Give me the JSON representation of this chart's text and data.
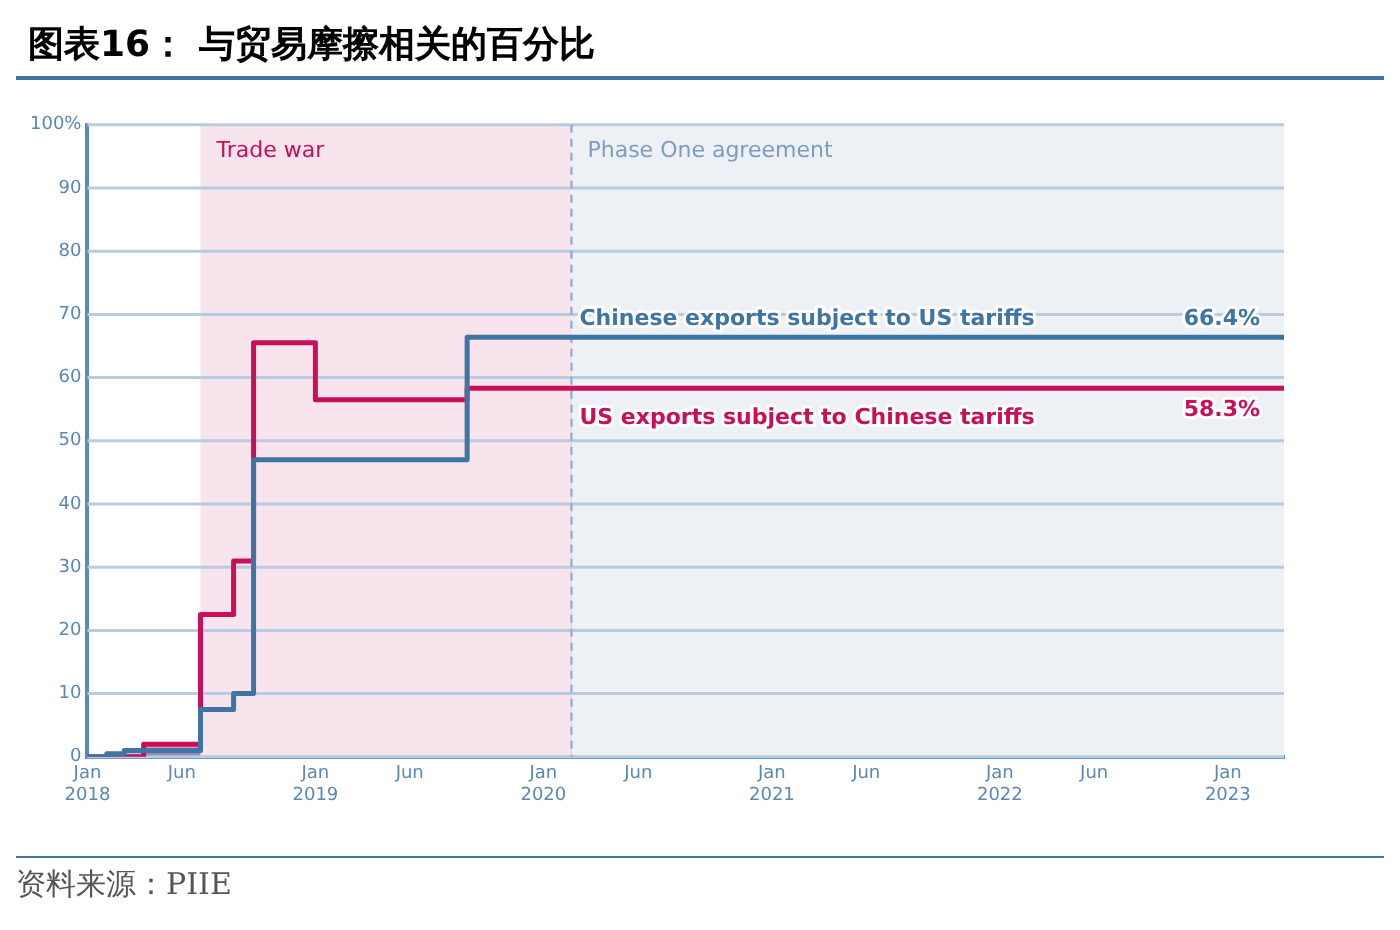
{
  "chart_data": {
    "type": "step",
    "title": "图表16：  与贸易摩擦相关的百分比",
    "annotations": [
      "资料来源：PIIE"
    ],
    "series": [
      {
        "name": "US exports subject to Chinese tariffs",
        "color": "#c8105a",
        "x": [
          "2018-01",
          "2018-04",
          "2018-07",
          "2018-08-23",
          "2018-09-24",
          "2019-01",
          "2019-09",
          "2023-04"
        ],
        "values": [
          0,
          2,
          22.5,
          31,
          65.5,
          56.5,
          58.3,
          58.3
        ],
        "value_labels": [
          null,
          null,
          null,
          null,
          null,
          null,
          null,
          "58.3%"
        ]
      },
      {
        "name": "Chinese exports subject to US tariffs",
        "color": "#3f74a3",
        "x": [
          "2018-01",
          "2018-02",
          "2018-03",
          "2018-07",
          "2018-08-23",
          "2018-09-24",
          "2019-09",
          "2023-04"
        ],
        "values": [
          0,
          0.5,
          1,
          7.5,
          10,
          47,
          66.4,
          66.4
        ],
        "value_labels": [
          null,
          null,
          null,
          null,
          null,
          null,
          null,
          "66.4%"
        ]
      }
    ],
    "xlim": [
      "2018-01",
      "2023-04"
    ],
    "xticks": [
      {
        "value": "2018-01",
        "label": "Jan\n2018"
      },
      {
        "value": "2018-06",
        "label": "Jun"
      },
      {
        "value": "2019-01",
        "label": "Jan\n2019"
      },
      {
        "value": "2019-06",
        "label": "Jun"
      },
      {
        "value": "2020-01",
        "label": "Jan\n2020"
      },
      {
        "value": "2020-06",
        "label": "Jun"
      },
      {
        "value": "2021-01",
        "label": "Jan\n2021"
      },
      {
        "value": "2021-06",
        "label": "Jun"
      },
      {
        "value": "2022-01",
        "label": "Jan\n2022"
      },
      {
        "value": "2022-06",
        "label": "Jun"
      },
      {
        "value": "2023-01",
        "label": "Jan\n2023"
      }
    ],
    "ylim": [
      0,
      100
    ],
    "yticks": [
      0,
      10,
      20,
      30,
      40,
      50,
      60,
      70,
      80,
      90,
      {
        "value": 100,
        "label": "100%"
      }
    ],
    "bands": [
      {
        "axis": "x",
        "from": "2018-07",
        "to": "2020-02-15",
        "label": "Trade war",
        "color": "#f8e4ed"
      },
      {
        "axis": "x",
        "from": "2020-02-15",
        "to": "2023-04",
        "label": "Phase One agreement",
        "color": "#edf0f5"
      }
    ],
    "ref_lines": [
      {
        "axis": "x",
        "value": "2020-02-15",
        "color": "#9aaed0",
        "line_style": "dashed"
      }
    ],
    "grid": "y",
    "legend": false,
    "marker": "none",
    "line_style": "solid"
  }
}
